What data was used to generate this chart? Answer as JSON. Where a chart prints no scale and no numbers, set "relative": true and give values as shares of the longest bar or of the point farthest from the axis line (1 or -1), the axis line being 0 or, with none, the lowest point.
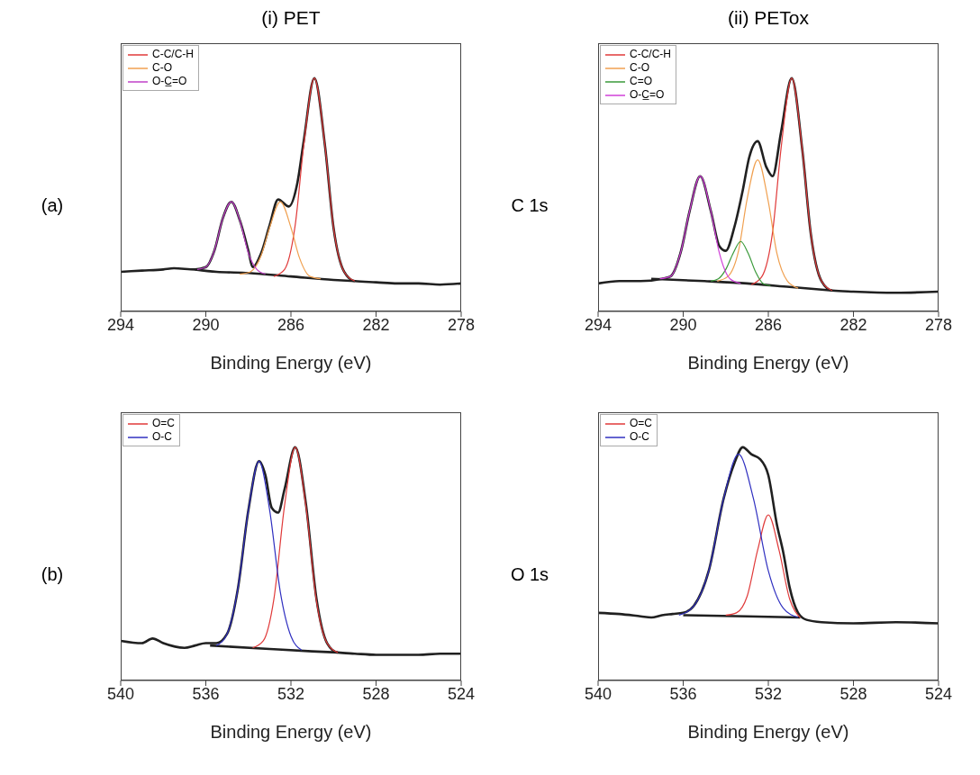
{
  "chart_data": [
    {
      "type": "line",
      "title": "(i) PET",
      "annotations": [
        "(a)"
      ],
      "xlabel": "Binding Energy (eV)",
      "relative": true,
      "xlim": [
        294,
        278
      ],
      "xticks": [
        294,
        290,
        286,
        282,
        278
      ],
      "legend": "top left",
      "series": [
        {
          "name": "C-C/C-H",
          "color": "#e03a3a",
          "x": [
            283.0,
            283.5,
            284.0,
            284.4,
            284.9,
            285.4,
            285.8,
            286.3,
            286.8
          ],
          "values": [
            0.13,
            0.17,
            0.36,
            0.71,
            1.0,
            0.71,
            0.37,
            0.18,
            0.15
          ]
        },
        {
          "name": "C-O",
          "color": "#f0a050",
          "x": [
            284.6,
            285.1,
            285.6,
            286.0,
            286.5,
            287.0,
            287.4,
            287.9,
            288.4
          ],
          "values": [
            0.14,
            0.15,
            0.23,
            0.36,
            0.47,
            0.36,
            0.24,
            0.17,
            0.16
          ]
        },
        {
          "name": "O-C̲=O",
          "color": "#c040c8",
          "x": [
            287.2,
            287.6,
            288.0,
            288.4,
            288.8,
            289.2,
            289.6,
            290.0,
            290.4
          ],
          "values": [
            0.16,
            0.18,
            0.25,
            0.39,
            0.47,
            0.4,
            0.26,
            0.19,
            0.18
          ]
        },
        {
          "color": "#202020",
          "x": [
            294,
            293.0,
            292.0,
            291.5,
            290.5,
            290.0,
            289.6,
            289.2,
            288.8,
            288.4,
            288.0,
            287.8,
            287.4,
            287.0,
            286.6,
            286.1,
            285.7,
            285.4,
            284.9,
            284.4,
            284.0,
            283.5,
            283.0,
            282.0,
            281.0,
            280.0,
            279.0,
            278.0
          ],
          "values": [
            0.17,
            0.175,
            0.18,
            0.185,
            0.18,
            0.19,
            0.26,
            0.4,
            0.47,
            0.39,
            0.26,
            0.19,
            0.25,
            0.37,
            0.48,
            0.45,
            0.55,
            0.73,
            1.0,
            0.71,
            0.36,
            0.17,
            0.13,
            0.125,
            0.12,
            0.12,
            0.115,
            0.12
          ]
        },
        {
          "color": "#202020",
          "x": [
            290.5,
            289.5,
            288.0,
            286.0,
            284.0,
            283.0
          ],
          "values": [
            0.18,
            0.17,
            0.165,
            0.15,
            0.135,
            0.13
          ]
        }
      ]
    },
    {
      "type": "line",
      "title": "(ii) PETox",
      "annotations": [
        "C 1s"
      ],
      "xlabel": "Binding Energy (eV)",
      "relative": true,
      "xlim": [
        294,
        278
      ],
      "xticks": [
        294,
        290,
        286,
        282,
        278
      ],
      "legend": "top left",
      "series": [
        {
          "name": "C-C/C-H",
          "color": "#e03a3a",
          "x": [
            283.0,
            283.5,
            284.0,
            284.4,
            284.9,
            285.4,
            285.8,
            286.3,
            286.8
          ],
          "values": [
            0.09,
            0.13,
            0.33,
            0.69,
            1.0,
            0.7,
            0.34,
            0.15,
            0.115
          ]
        },
        {
          "name": "C-O",
          "color": "#f0a050",
          "x": [
            284.6,
            285.1,
            285.6,
            286.0,
            286.5,
            287.0,
            287.4,
            287.9,
            288.4
          ],
          "values": [
            0.1,
            0.13,
            0.25,
            0.47,
            0.65,
            0.48,
            0.26,
            0.15,
            0.13
          ]
        },
        {
          "name": "C=O",
          "color": "#3a9a3a",
          "x": [
            285.9,
            286.25,
            286.6,
            286.95,
            287.3,
            287.65,
            288.0,
            288.35,
            288.7
          ],
          "values": [
            0.11,
            0.12,
            0.17,
            0.25,
            0.3,
            0.25,
            0.18,
            0.14,
            0.13
          ]
        },
        {
          "name": "O-C̲=O",
          "color": "#d040d8",
          "x": [
            287.3,
            287.8,
            288.3,
            288.7,
            289.2,
            289.7,
            290.1,
            290.6,
            291.1
          ],
          "values": [
            0.12,
            0.14,
            0.25,
            0.43,
            0.58,
            0.43,
            0.26,
            0.15,
            0.14
          ]
        },
        {
          "color": "#202020",
          "x": [
            294,
            293.0,
            292.0,
            291.0,
            290.6,
            290.1,
            289.7,
            289.2,
            288.7,
            288.3,
            288.0,
            287.6,
            287.2,
            286.9,
            286.5,
            286.1,
            285.8,
            285.4,
            284.9,
            284.4,
            284.0,
            283.5,
            283.0,
            282.0,
            280.0,
            278.0
          ],
          "values": [
            0.12,
            0.13,
            0.13,
            0.14,
            0.15,
            0.26,
            0.43,
            0.58,
            0.43,
            0.28,
            0.26,
            0.36,
            0.52,
            0.66,
            0.73,
            0.62,
            0.58,
            0.77,
            1.0,
            0.69,
            0.33,
            0.13,
            0.09,
            0.085,
            0.08,
            0.085
          ]
        },
        {
          "color": "#202020",
          "x": [
            291.5,
            289.0,
            287.0,
            285.0,
            283.0
          ],
          "values": [
            0.14,
            0.13,
            0.12,
            0.105,
            0.09
          ]
        }
      ]
    },
    {
      "type": "line",
      "annotations": [
        "(b)"
      ],
      "xlabel": "Binding Energy (eV)",
      "relative": true,
      "xlim": [
        540,
        524
      ],
      "xticks": [
        540,
        536,
        532,
        528,
        524
      ],
      "legend": "top left",
      "series": [
        {
          "name": "O=C",
          "color": "#e03a3a",
          "x": [
            529.8,
            530.3,
            530.8,
            531.3,
            531.8,
            532.3,
            532.8,
            533.3,
            533.8
          ],
          "values": [
            0.12,
            0.16,
            0.34,
            0.75,
            1.0,
            0.75,
            0.35,
            0.17,
            0.14
          ]
        },
        {
          "name": "O-C",
          "color": "#3030c0",
          "x": [
            531.5,
            532.0,
            532.5,
            533.0,
            533.5,
            534.0,
            534.5,
            535.0,
            535.5
          ],
          "values": [
            0.13,
            0.19,
            0.38,
            0.73,
            0.94,
            0.73,
            0.39,
            0.2,
            0.15
          ]
        },
        {
          "color": "#202020",
          "x": [
            540,
            539.0,
            538.5,
            538.0,
            537.0,
            536.5,
            536.0,
            535.5,
            535.0,
            534.5,
            534.0,
            533.5,
            533.2,
            532.9,
            532.6,
            532.3,
            531.8,
            531.3,
            530.8,
            530.3,
            529.8,
            529.0,
            528.0,
            527.0,
            526.0,
            525.0,
            524.0
          ],
          "values": [
            0.17,
            0.16,
            0.18,
            0.16,
            0.14,
            0.15,
            0.16,
            0.16,
            0.2,
            0.39,
            0.73,
            0.94,
            0.88,
            0.74,
            0.72,
            0.82,
            1.0,
            0.76,
            0.35,
            0.16,
            0.12,
            0.115,
            0.11,
            0.11,
            0.11,
            0.115,
            0.115
          ]
        },
        {
          "color": "#202020",
          "x": [
            535.8,
            533.0,
            531.0,
            529.8
          ],
          "values": [
            0.15,
            0.135,
            0.125,
            0.12
          ]
        }
      ]
    },
    {
      "type": "line",
      "annotations": [
        "O 1s"
      ],
      "xlabel": "Binding Energy (eV)",
      "relative": true,
      "xlim": [
        540,
        524
      ],
      "xticks": [
        540,
        536,
        532,
        528,
        524
      ],
      "legend": "top left",
      "series": [
        {
          "name": "O=C",
          "color": "#e03a3a",
          "x": [
            530.5,
            531.0,
            531.5,
            532.0,
            532.5,
            533.0,
            533.5,
            534.0
          ],
          "values": [
            0.27,
            0.35,
            0.56,
            0.71,
            0.56,
            0.36,
            0.29,
            0.28
          ]
        },
        {
          "name": "O-C",
          "color": "#3030c0",
          "x": [
            530.6,
            531.3,
            532.0,
            532.7,
            533.4,
            534.1,
            534.8,
            535.5,
            536.2
          ],
          "values": [
            0.27,
            0.31,
            0.47,
            0.78,
            0.97,
            0.78,
            0.47,
            0.32,
            0.28
          ]
        },
        {
          "color": "#202020",
          "x": [
            540,
            539.0,
            538.0,
            537.5,
            537.0,
            536.5,
            536.0,
            535.5,
            534.8,
            534.1,
            533.6,
            533.2,
            532.8,
            532.4,
            532.0,
            531.6,
            531.3,
            531.0,
            530.6,
            530.2,
            529.5,
            528.0,
            526.0,
            524.0
          ],
          "values": [
            0.29,
            0.285,
            0.275,
            0.27,
            0.28,
            0.285,
            0.29,
            0.32,
            0.47,
            0.78,
            0.93,
            1.0,
            0.97,
            0.95,
            0.88,
            0.67,
            0.55,
            0.4,
            0.29,
            0.26,
            0.25,
            0.245,
            0.25,
            0.245
          ]
        },
        {
          "color": "#202020",
          "x": [
            536.0,
            533.0,
            530.5
          ],
          "values": [
            0.28,
            0.275,
            0.27
          ]
        }
      ]
    }
  ]
}
